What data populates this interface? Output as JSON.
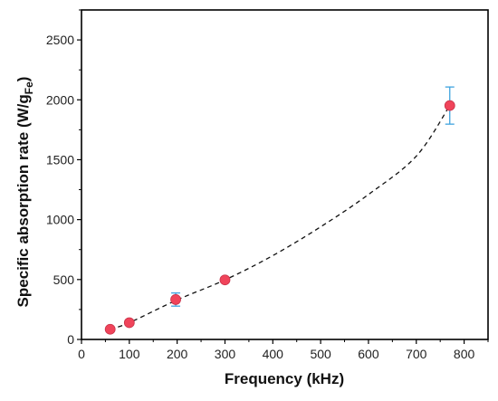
{
  "chart_data": {
    "type": "scatter",
    "xlabel": "Frequency (kHz)",
    "ylabel_main": "Specific absorption rate (W/g",
    "ylabel_sub": "Fe",
    "ylabel_close": ")",
    "xlim": [
      0,
      850
    ],
    "ylim": [
      0,
      2750
    ],
    "xticks": [
      0,
      100,
      200,
      300,
      400,
      500,
      600,
      700,
      800
    ],
    "yticks": [
      0,
      500,
      1000,
      1500,
      2000,
      2500
    ],
    "grid": false,
    "legend": "none",
    "series": [
      {
        "x": [
          60,
          100,
          197,
          300,
          770
        ],
        "y": [
          85,
          140,
          333,
          497,
          1952
        ],
        "error": [
          10,
          10,
          55,
          15,
          155
        ]
      }
    ],
    "fit": {
      "style": "dashed",
      "x_start": 60,
      "x_end": 770,
      "coefficients": {
        "a": 0.002535,
        "b": 0.0,
        "c": 0.0
      },
      "fit_points": [
        [
          60,
          85
        ],
        [
          100,
          140
        ],
        [
          200,
          330
        ],
        [
          300,
          497
        ],
        [
          400,
          700
        ],
        [
          500,
          940
        ],
        [
          600,
          1210
        ],
        [
          700,
          1530
        ],
        [
          770,
          1952
        ]
      ]
    },
    "colors": {
      "marker": "#f0445a",
      "marker_edge": "#c8334a",
      "errorbar": "#3fa3de",
      "fit_line": "#111111",
      "axis": "#000000"
    }
  }
}
